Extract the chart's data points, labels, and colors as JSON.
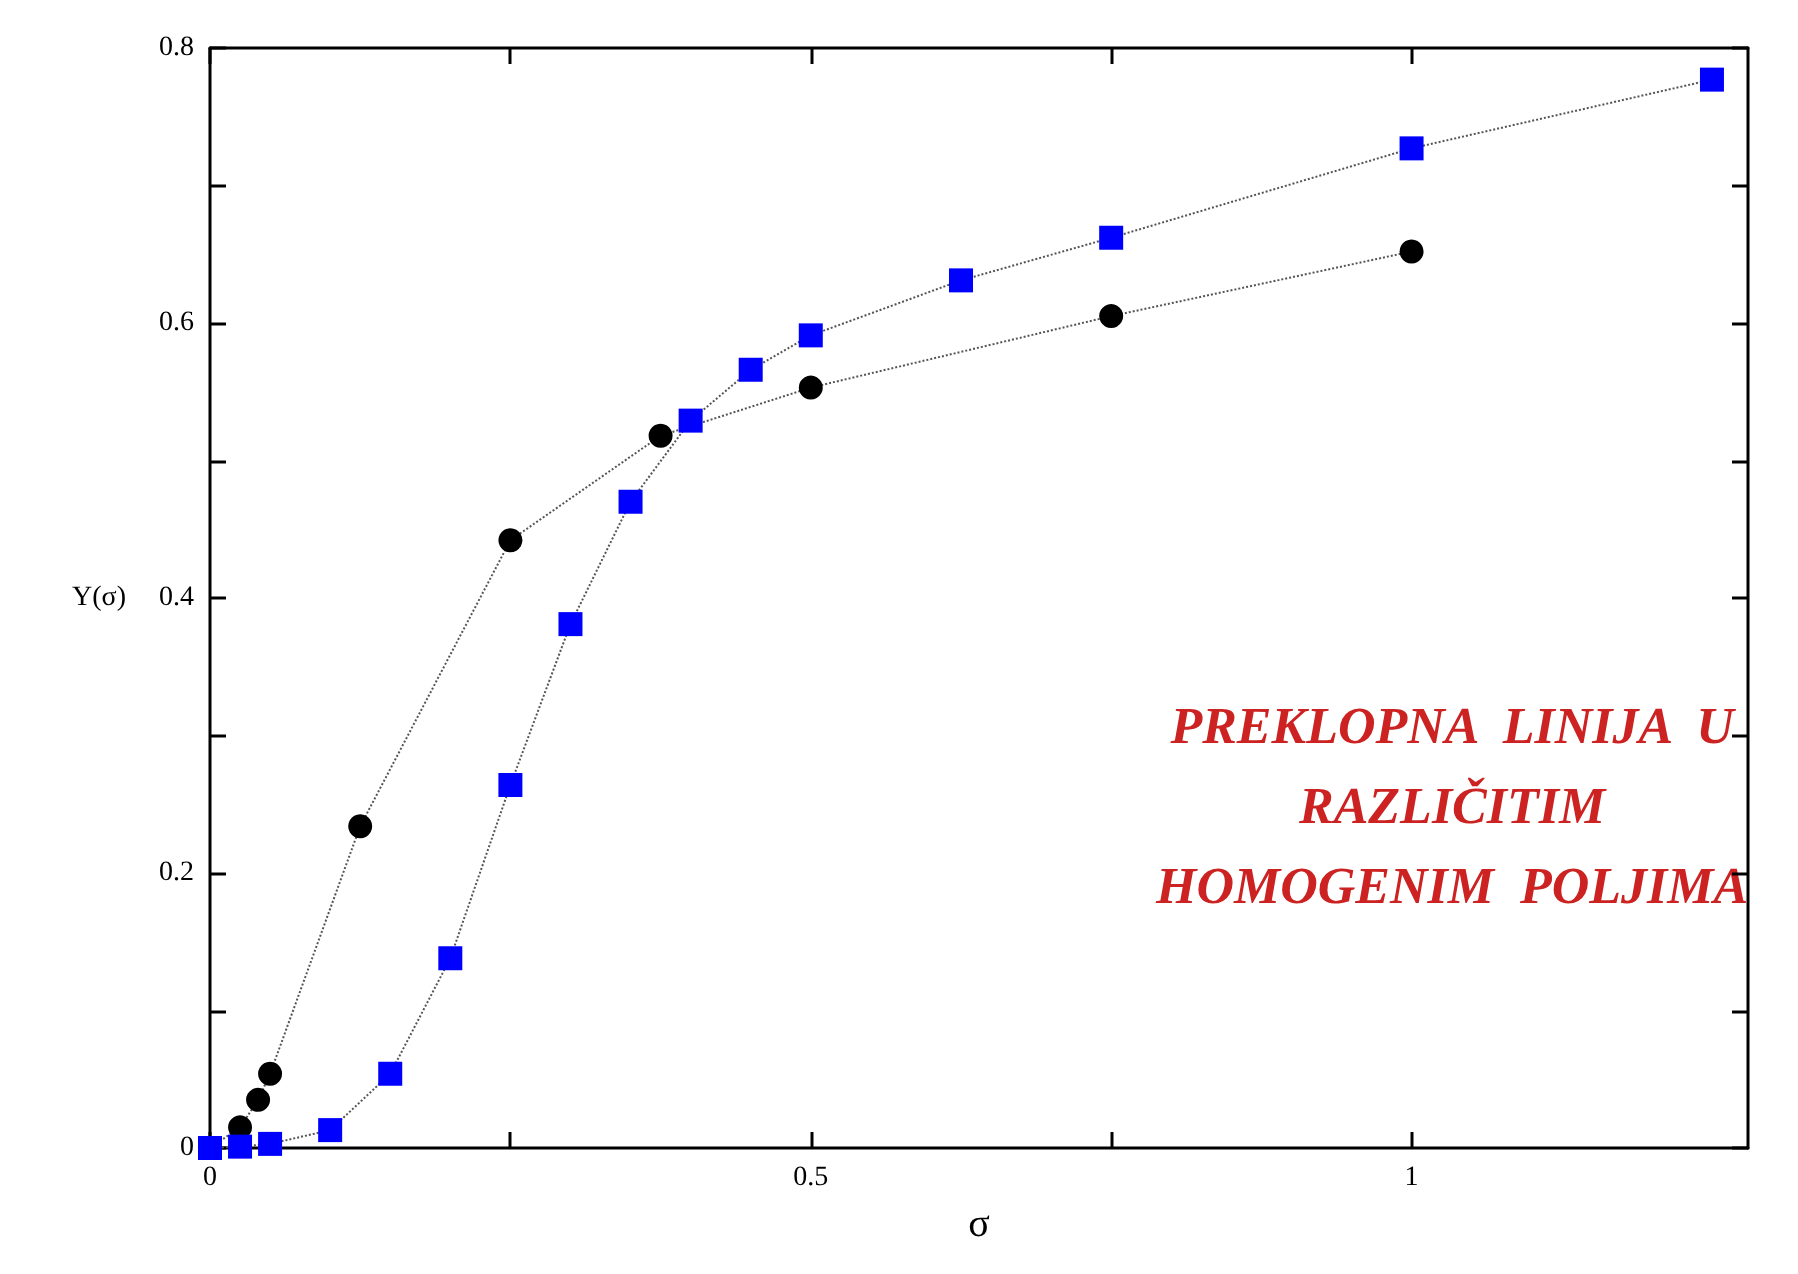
{
  "chart_data": {
    "type": "line",
    "xlabel": "σ",
    "ylabel": "Y(σ)",
    "xlim": [
      0,
      1.28
    ],
    "ylim": [
      0,
      0.8
    ],
    "xticks": [
      0,
      {
        "value": 0.25,
        "label": null
      },
      0.5,
      {
        "value": 0.75,
        "label": null
      },
      1
    ],
    "yticks": [
      0,
      {
        "value": 0.1,
        "label": null
      },
      0.2,
      {
        "value": 0.3,
        "label": null
      },
      0.4,
      {
        "value": 0.5,
        "label": null
      },
      0.6,
      {
        "value": 0.7,
        "label": null
      },
      0.8
    ],
    "grid": false,
    "line_style": "dotted",
    "series": [
      {
        "color": "#000000",
        "marker": "circle",
        "x": [
          0,
          0.025,
          0.04,
          0.05,
          0.125,
          0.25,
          0.375,
          0.5,
          0.75,
          1.0
        ],
        "values": [
          0,
          0.015,
          0.035,
          0.054,
          0.234,
          0.442,
          0.518,
          0.553,
          0.605,
          0.652
        ]
      },
      {
        "color": "#0000ff",
        "marker": "square",
        "x": [
          0,
          0.025,
          0.05,
          0.1,
          0.15,
          0.2,
          0.25,
          0.3,
          0.35,
          0.4,
          0.45,
          0.5,
          0.625,
          0.75,
          1.0,
          1.25
        ],
        "values": [
          0,
          0.001,
          0.003,
          0.013,
          0.054,
          0.138,
          0.264,
          0.381,
          0.47,
          0.529,
          0.566,
          0.591,
          0.631,
          0.662,
          0.727,
          0.777
        ]
      }
    ],
    "annotations": [
      "PREKLOPNA  LINIJA  U\nRAZLIČITIM\nHOMOGENIM  POLJIMA"
    ]
  }
}
